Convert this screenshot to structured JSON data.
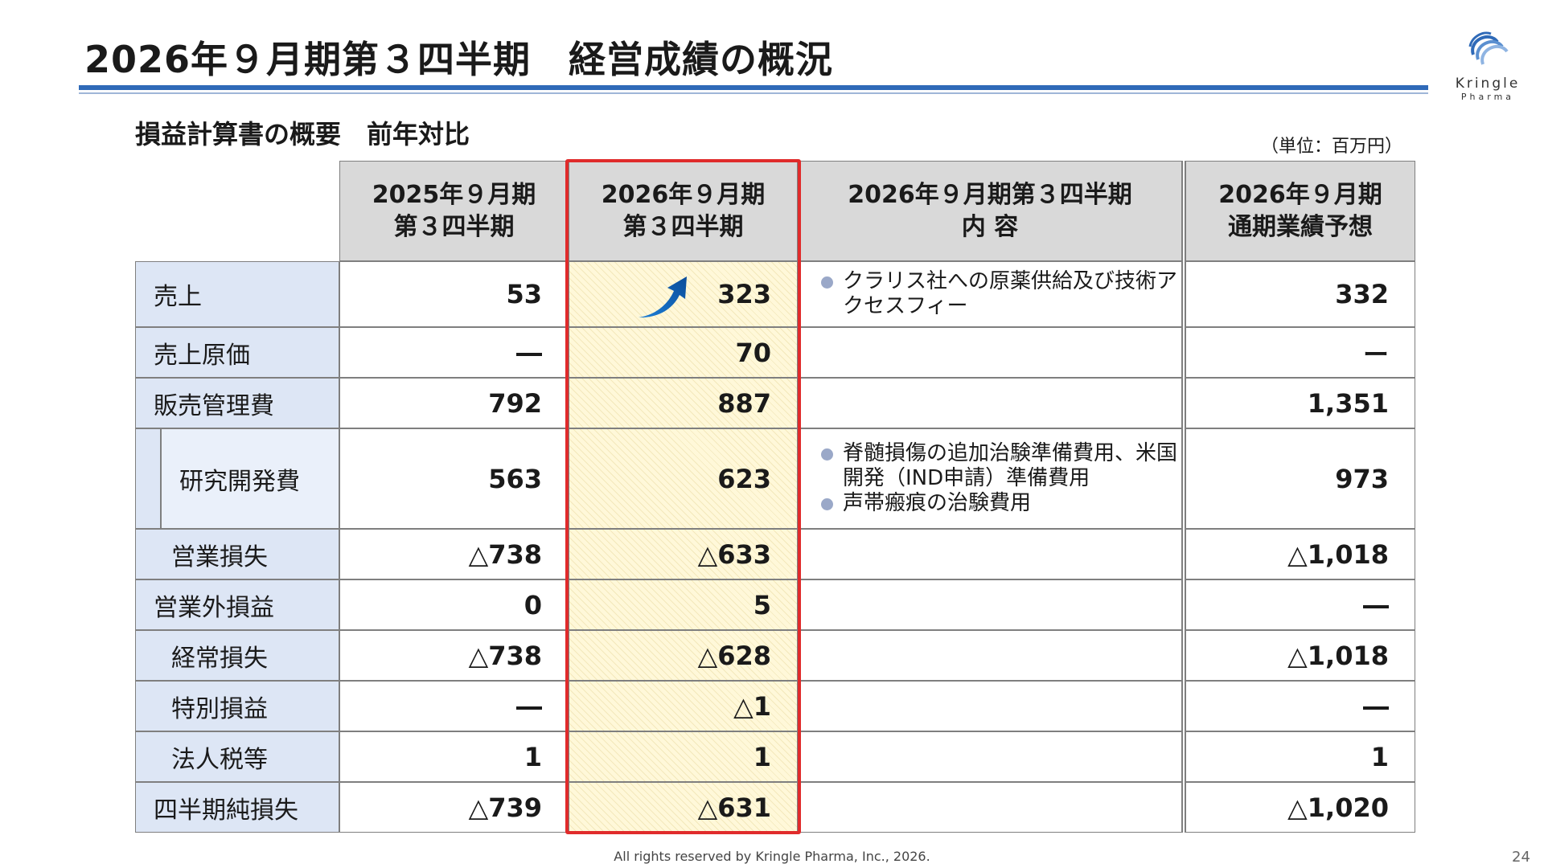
{
  "title": "2026年９月期第３四半期　経営成績の概況",
  "logo": {
    "name": "Kringle",
    "sub": "Pharma",
    "icon": "kringle-swirl-logo"
  },
  "subtitle": "損益計算書の概要　前年対比",
  "unit": "（単位：百万円）",
  "headers": {
    "prev": [
      "2025年９月期",
      "第３四半期"
    ],
    "curr": [
      "2026年９月期",
      "第３四半期"
    ],
    "content": [
      "2026年９月期第３四半期",
      "内 容"
    ],
    "forecast": [
      "2026年９月期",
      "通期業績予想"
    ]
  },
  "rows": [
    {
      "label": "売上",
      "prev": "53",
      "curr": "323",
      "forecast": "332",
      "notes": [
        "クラリス社への原薬供給及び技術アクセスフィー"
      ]
    },
    {
      "label": "売上原価",
      "prev": "―",
      "curr": "70",
      "forecast": "ー",
      "notes": []
    },
    {
      "label": "販売管理費",
      "prev": "792",
      "curr": "887",
      "forecast": "1,351",
      "notes": []
    },
    {
      "label": "研究開発費",
      "prev": "563",
      "curr": "623",
      "forecast": "973",
      "notes": [
        "脊髄損傷の追加治験準備費用、米国開発（IND申請）準備費用",
        "声帯瘢痕の治験費用"
      ]
    },
    {
      "label": "営業損失",
      "prev": "△738",
      "curr": "△633",
      "forecast": "△1,018",
      "notes": []
    },
    {
      "label": "営業外損益",
      "prev": "0",
      "curr": "5",
      "forecast": "―",
      "notes": []
    },
    {
      "label": "経常損失",
      "prev": "△738",
      "curr": "△628",
      "forecast": "△1,018",
      "notes": []
    },
    {
      "label": "特別損益",
      "prev": "―",
      "curr": "△1",
      "forecast": "―",
      "notes": []
    },
    {
      "label": "法人税等",
      "prev": "1",
      "curr": "1",
      "forecast": "1",
      "notes": []
    },
    {
      "label": "四半期純損失",
      "prev": "△739",
      "curr": "△631",
      "forecast": "△1,020",
      "notes": []
    }
  ],
  "highlight_color": "#e02b2b",
  "accent_color": "#2f6ab8",
  "footer": "All rights reserved by Kringle Pharma, Inc., 2026.",
  "page_number": "24"
}
